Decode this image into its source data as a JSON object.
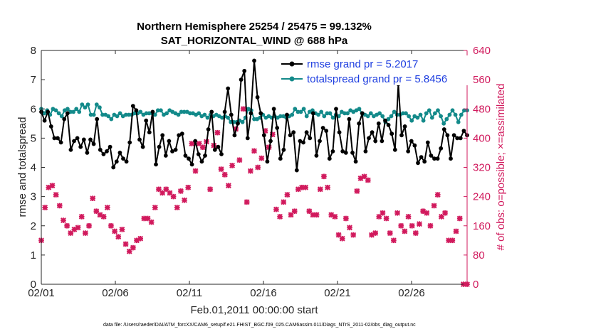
{
  "colors": {
    "rmse": "#000000",
    "spread": "#138a8a",
    "obs": "#d11a5d",
    "legend_text": "#1f3fe0",
    "axis": "#262626"
  },
  "chart_data": {
    "type": "line",
    "title_line1": "Northern Hemisphere 25254 / 25475 = 99.132%",
    "title_line2": "SAT_HORIZONTAL_WIND @ 688 hPa",
    "xlabel": "Feb.01,2011 00:00:00 start",
    "ylabel_left": "rmse and totalspread",
    "ylabel_right": "# of obs: o=possible; ×=assimilated",
    "footer": "data file: /Users/raeder/DAI/ATM_forcXX/CAM6_setup/f.e21.FHIST_BGC.f09_025.CAM6assim.011/Diags_NTrS_2011-02/obs_diag_output.nc",
    "xlim": [
      0,
      28.75
    ],
    "ylim_left": [
      0,
      8
    ],
    "ylim_right": [
      0,
      640
    ],
    "x_ticks": [
      0,
      5,
      10,
      15,
      20,
      25
    ],
    "x_tick_labels": [
      "02/01",
      "02/06",
      "02/11",
      "02/16",
      "02/21",
      "02/26"
    ],
    "y_left_ticks": [
      "0",
      "1",
      "2",
      "3",
      "4",
      "5",
      "6",
      "7",
      "8"
    ],
    "y_right_ticks": [
      "0",
      "80",
      "160",
      "240",
      "320",
      "400",
      "480",
      "560",
      "640"
    ],
    "grid": false,
    "legend_position": "top-right",
    "series": [
      {
        "name": "rmse grand pr = 5.2017",
        "axis": "left",
        "values": [
          5.9,
          5.6,
          5.9,
          5.4,
          5.0,
          5.0,
          4.85,
          5.65,
          5.85,
          4.6,
          4.9,
          5.0,
          4.7,
          4.95,
          4.5,
          4.95,
          4.8,
          5.65,
          4.6,
          4.45,
          4.55,
          4.7,
          4.0,
          4.2,
          4.5,
          4.3,
          4.2,
          4.85,
          6.1,
          5.95,
          4.95,
          4.7,
          5.6,
          5.2,
          5.9,
          4.1,
          4.7,
          5.1,
          4.4,
          4.9,
          4.55,
          4.6,
          5.1,
          5.15,
          4.4,
          4.3,
          4.1,
          4.9,
          4.45,
          4.2,
          4.4,
          5.3,
          5.9,
          4.6,
          4.7,
          4.45,
          5.9,
          6.7,
          5.8,
          5.1,
          5.5,
          7.0,
          7.3,
          5.0,
          5.85,
          7.65,
          6.4,
          5.85,
          5.1,
          4.2,
          4.9,
          6.0,
          5.35,
          4.3,
          4.6,
          5.8,
          5.1,
          5.2,
          3.9,
          4.9,
          4.85,
          5.2,
          5.0,
          5.85,
          4.4,
          4.9,
          5.35,
          5.25,
          4.3,
          4.55,
          6.0,
          5.2,
          4.55,
          4.5,
          5.65,
          4.5,
          4.2,
          5.5,
          5.85,
          4.55,
          5.0,
          5.2,
          4.9,
          5.5,
          4.9,
          5.6,
          5.45,
          5.15,
          4.6,
          6.85,
          5.1,
          5.4,
          4.55,
          4.9,
          4.75,
          4.15,
          4.35,
          4.2,
          4.85,
          4.4,
          4.3,
          4.3,
          4.65,
          5.3,
          5.1,
          4.3,
          5.1,
          5.0,
          5.0,
          5.25,
          5.1
        ]
      },
      {
        "name": "totalspread grand pr = 5.8456",
        "axis": "left",
        "values": [
          6.0,
          5.85,
          5.95,
          5.8,
          6.0,
          5.95,
          5.85,
          5.75,
          5.95,
          6.0,
          5.9,
          5.9,
          6.0,
          5.9,
          6.15,
          6.05,
          6.15,
          5.8,
          5.8,
          6.15,
          6.05,
          5.8,
          5.8,
          5.75,
          5.65,
          5.8,
          5.75,
          5.85,
          5.75,
          5.8,
          5.8,
          5.8,
          5.85,
          5.85,
          5.9,
          5.8,
          5.85,
          5.85,
          5.85,
          5.8,
          5.95,
          5.95,
          5.8,
          5.85,
          5.95,
          5.9,
          5.85,
          5.8,
          5.9,
          5.9,
          5.9,
          5.85,
          5.85,
          5.8,
          5.85,
          5.75,
          5.8,
          5.7,
          5.8,
          5.75,
          5.8,
          5.75,
          5.7,
          5.75,
          5.7,
          5.55,
          5.55,
          5.55,
          5.6,
          5.55,
          5.7,
          6.0,
          5.95,
          5.65,
          5.65,
          5.7,
          5.8,
          5.7,
          5.75,
          5.7,
          5.75,
          5.7,
          5.75,
          5.75,
          5.7,
          5.75,
          5.8,
          6.0,
          5.9,
          5.9,
          6.0,
          5.75,
          5.9,
          5.95,
          5.85,
          5.8,
          5.9,
          5.75,
          5.85,
          5.85,
          5.7,
          5.8,
          5.75,
          5.9,
          5.85,
          5.85,
          5.95,
          5.9,
          5.95,
          6.0,
          5.85,
          5.8,
          5.75,
          5.85,
          5.75,
          5.8,
          5.85,
          5.75,
          5.55,
          5.65,
          5.75,
          5.9,
          5.8,
          5.8,
          5.85,
          5.85,
          5.75,
          5.6,
          5.75,
          5.7,
          5.8,
          5.6,
          5.85,
          5.95,
          5.7,
          5.85,
          5.95,
          5.75,
          5.5,
          5.65,
          5.8,
          5.95,
          5.8,
          5.55,
          5.8,
          5.95,
          5.95
        ]
      },
      {
        "name": "obs assimilated",
        "axis": "right",
        "values": [
          120,
          210,
          265,
          270,
          245,
          215,
          175,
          160,
          140,
          150,
          155,
          185,
          140,
          160,
          235,
          200,
          190,
          185,
          210,
          160,
          145,
          130,
          150,
          110,
          90,
          100,
          120,
          125,
          180,
          180,
          170,
          210,
          260,
          250,
          260,
          250,
          240,
          210,
          255,
          230,
          265,
          385,
          310,
          385,
          375,
          390,
          260,
          380,
          415,
          315,
          300,
          270,
          325,
          425,
          340,
          480,
          225,
          310,
          365,
          320,
          345,
          420,
          375,
          410,
          205,
          185,
          225,
          245,
          190,
          200,
          260,
          265,
          265,
          200,
          190,
          190,
          260,
          295,
          265,
          190,
          185,
          135,
          125,
          180,
          155,
          135,
          255,
          290,
          295,
          285,
          135,
          140,
          185,
          195,
          180,
          140,
          120,
          195,
          160,
          145,
          185,
          160,
          140,
          165,
          200,
          195,
          160,
          215,
          245,
          185,
          195,
          120,
          120,
          145,
          180,
          0,
          0
        ]
      }
    ]
  }
}
